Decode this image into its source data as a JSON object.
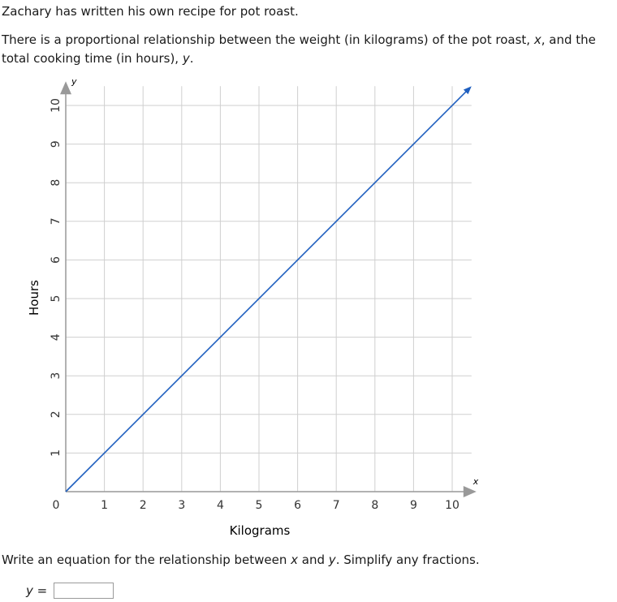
{
  "problem": {
    "intro": "Zachary has written his own recipe for pot roast.",
    "desc_part1": "There is a proportional relationship between the weight (in kilograms) of the pot roast, ",
    "desc_var_x": "x",
    "desc_part2": ", and the total cooking time (in hours), ",
    "desc_var_y": "y",
    "desc_part3": ".",
    "question_part1": "Write an equation for the relationship between ",
    "question_var_x": "x",
    "question_part2": " and ",
    "question_var_y": "y",
    "question_part3": ". Simplify any fractions.",
    "answer_var": "y",
    "answer_equals": "=",
    "answer_value": ""
  },
  "chart_data": {
    "type": "line",
    "title": "",
    "xlabel": "Kilograms",
    "ylabel": "Hours",
    "x_axis_var": "x",
    "y_axis_var": "y",
    "xlim": [
      0,
      10.5
    ],
    "ylim": [
      0,
      10.5
    ],
    "x_ticks": [
      0,
      1,
      2,
      3,
      4,
      5,
      6,
      7,
      8,
      9,
      10
    ],
    "y_ticks": [
      1,
      2,
      3,
      4,
      5,
      6,
      7,
      8,
      9,
      10
    ],
    "grid": true,
    "series": [
      {
        "x": [
          0,
          10.5
        ],
        "y": [
          0,
          10.5
        ],
        "color": "#1f5fbf",
        "arrow_end": true
      }
    ],
    "colors": {
      "grid": "#cfcfcf",
      "axis": "#999999",
      "line": "#1f5fbf",
      "text": "#333333"
    }
  }
}
